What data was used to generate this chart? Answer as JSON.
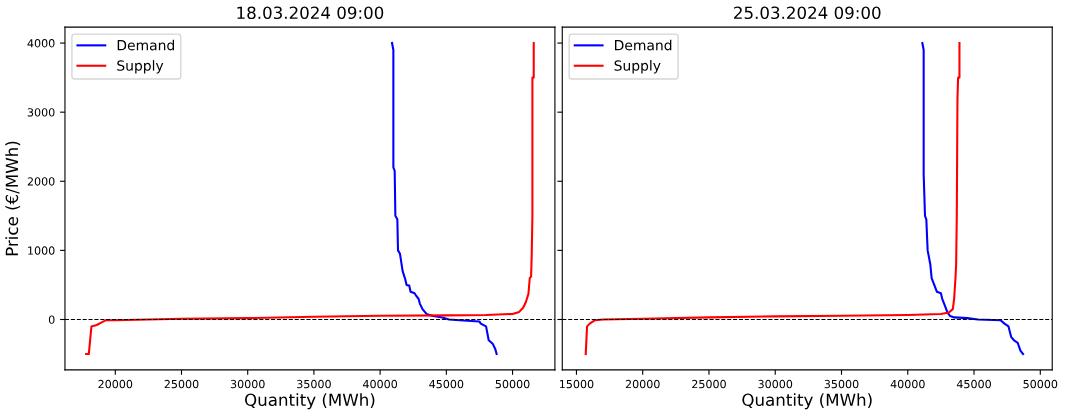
{
  "chart_data": [
    {
      "type": "line",
      "title": "18.03.2024 09:00",
      "xlabel": "Quantity (MWh)",
      "ylabel": "Price (€/MWh)",
      "xlim": [
        16200,
        53200
      ],
      "ylim": [
        -730,
        4230
      ],
      "xticks": [
        20000,
        25000,
        30000,
        35000,
        40000,
        45000,
        50000
      ],
      "yticks": [
        0,
        1000,
        2000,
        3000,
        4000
      ],
      "legend": "top left",
      "grid": false,
      "line_style": "solid",
      "marker": "none",
      "ref_lines": [
        {
          "axis": "y",
          "value": 0,
          "color": "#000000",
          "line_style": "dashed"
        }
      ],
      "series": [
        {
          "name": "Demand",
          "color": "#0000ff",
          "x": [
            40900,
            41000,
            41000,
            41100,
            41150,
            41300,
            41350,
            41500,
            41700,
            41900,
            42000,
            42200,
            42300,
            42600,
            42700,
            42900,
            43000,
            43200,
            43500,
            44000,
            44700,
            45200,
            46000,
            47500,
            47600,
            48000,
            48200,
            48500,
            48700,
            48800
          ],
          "values": [
            4000,
            3900,
            2200,
            2150,
            1500,
            1450,
            1000,
            950,
            700,
            580,
            500,
            490,
            400,
            380,
            350,
            300,
            230,
            150,
            80,
            50,
            30,
            0,
            -10,
            -30,
            -60,
            -100,
            -300,
            -350,
            -430,
            -500
          ]
        },
        {
          "name": "Supply",
          "color": "#ff0000",
          "x": [
            17800,
            18000,
            18200,
            18600,
            18900,
            19300,
            20000,
            25000,
            30000,
            35000,
            40000,
            45000,
            48000,
            50000,
            50500,
            50800,
            51000,
            51200,
            51300,
            51400,
            51450,
            51500,
            51500,
            51600,
            51600
          ],
          "values": [
            -500,
            -500,
            -100,
            -80,
            -50,
            -10,
            -10,
            10,
            20,
            40,
            55,
            60,
            65,
            80,
            110,
            170,
            250,
            370,
            600,
            620,
            950,
            1500,
            3500,
            3500,
            4000
          ]
        }
      ]
    },
    {
      "type": "line",
      "title": "25.03.2024 09:00",
      "xlabel": "Quantity (MWh)",
      "xlim": [
        13930,
        50900
      ],
      "ylim": [
        -730,
        4230
      ],
      "xticks": [
        15000,
        20000,
        25000,
        30000,
        35000,
        40000,
        45000,
        50000
      ],
      "yticks": [
        {
          "value": 0,
          "label": null
        },
        {
          "value": 1000,
          "label": null
        },
        {
          "value": 2000,
          "label": null
        },
        {
          "value": 3000,
          "label": null
        },
        {
          "value": 4000,
          "label": null
        }
      ],
      "tick_labels": "x",
      "legend": "top left",
      "grid": false,
      "line_style": "solid",
      "marker": "none",
      "ref_lines": [
        {
          "axis": "y",
          "value": 0,
          "color": "#000000",
          "line_style": "dashed"
        }
      ],
      "series": [
        {
          "name": "Demand",
          "color": "#0000ff",
          "x": [
            41100,
            41200,
            41200,
            41300,
            41400,
            41500,
            41700,
            41800,
            42000,
            42200,
            42500,
            42600,
            42800,
            43000,
            43200,
            43500,
            44500,
            45300,
            47000,
            47300,
            47600,
            47800,
            48000,
            48300,
            48500,
            48700
          ],
          "values": [
            4000,
            3900,
            2100,
            1500,
            1450,
            1000,
            800,
            600,
            500,
            400,
            380,
            300,
            200,
            100,
            50,
            30,
            20,
            0,
            -10,
            -60,
            -100,
            -250,
            -300,
            -340,
            -450,
            -500
          ]
        },
        {
          "name": "Supply",
          "color": "#ff0000",
          "x": [
            15700,
            15800,
            16000,
            16400,
            17000,
            20000,
            25000,
            30000,
            35000,
            40000,
            42500,
            43100,
            43400,
            43500,
            43600,
            43650,
            43700,
            43750,
            43800,
            43900,
            43900
          ],
          "values": [
            -500,
            -100,
            -60,
            -10,
            0,
            10,
            30,
            45,
            55,
            65,
            80,
            100,
            150,
            300,
            600,
            800,
            1500,
            3200,
            3500,
            3500,
            4000
          ]
        }
      ]
    }
  ]
}
